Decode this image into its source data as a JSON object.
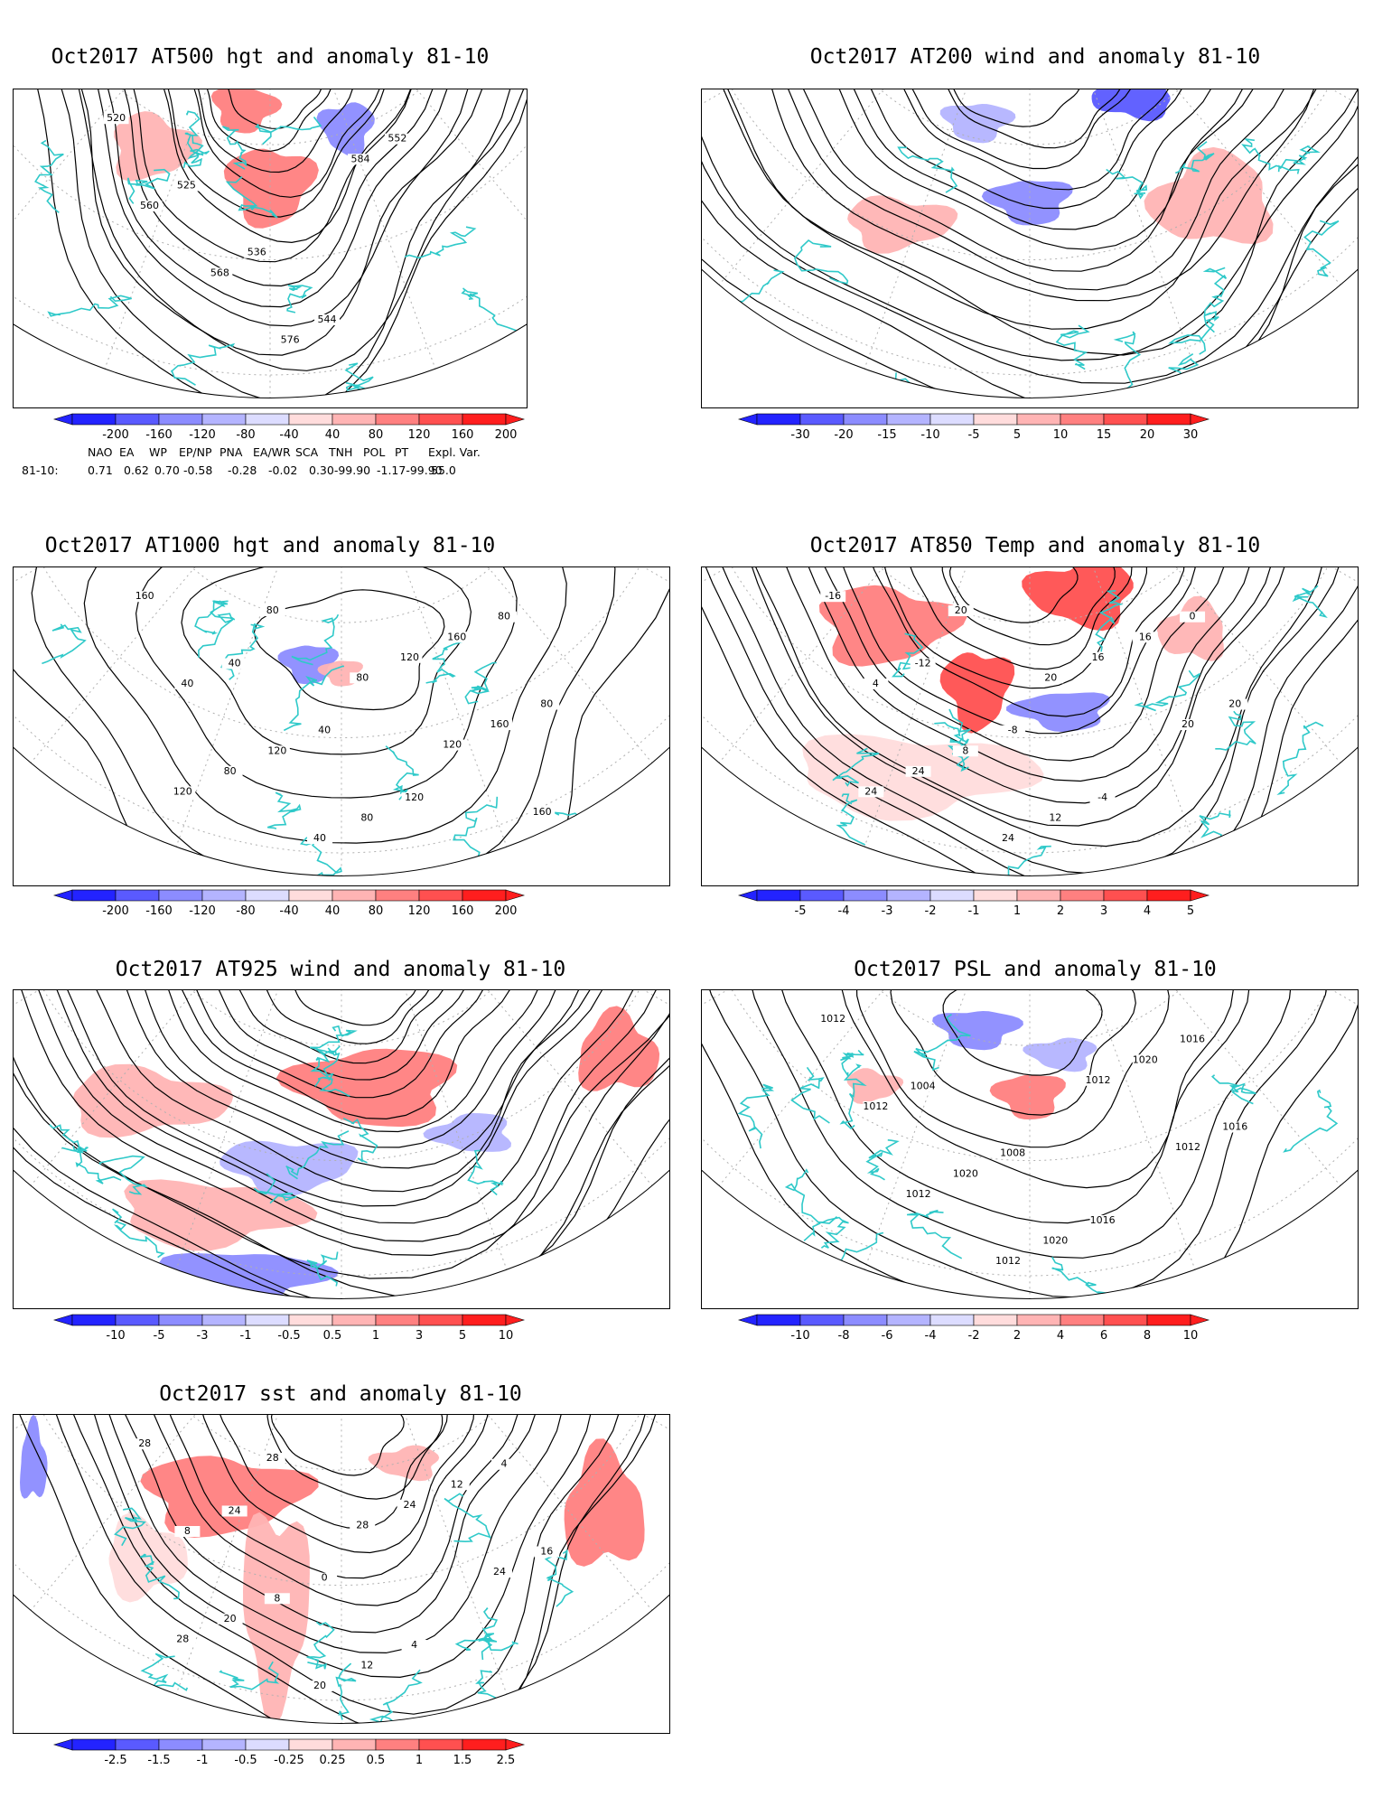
{
  "panels": [
    {
      "id": "p1",
      "title": "Oct2017 AT500 hgt and anomaly 81-10",
      "contour_labels": [
        "520",
        "525",
        "536",
        "544",
        "552",
        "560",
        "568",
        "576",
        "584"
      ],
      "colorbar": {
        "ticks": [
          "-200",
          "-160",
          "-120",
          "-80",
          "-40",
          "40",
          "80",
          "120",
          "160",
          "200"
        ]
      },
      "index_table": {
        "headers": [
          "NAO",
          "EA",
          "WP",
          "EP/NP",
          "PNA",
          "EA/WR",
          "SCA",
          "TNH",
          "POL",
          "PT",
          "Expl. Var."
        ],
        "row_label": "81-10:",
        "values": [
          "0.71",
          "0.62",
          "0.70",
          "-0.58",
          "-0.28",
          "-0.02",
          "0.30-99.90",
          "-1.17-99.90",
          "55.0"
        ]
      }
    },
    {
      "id": "p2",
      "title": "Oct2017 AT200 wind and anomaly 81-10",
      "contour_labels": [],
      "colorbar": {
        "ticks": [
          "-30",
          "-20",
          "-15",
          "-10",
          "-5",
          "5",
          "10",
          "15",
          "20",
          "30"
        ]
      }
    },
    {
      "id": "p3",
      "title": "Oct2017 AT1000 hgt and anomaly 81-10",
      "contour_labels": [
        "160",
        "40",
        "40",
        "120",
        "80",
        "40",
        "120",
        "80",
        "160",
        "80",
        "80",
        "40",
        "120",
        "160",
        "120",
        "80",
        "80",
        "120",
        "160"
      ],
      "colorbar": {
        "ticks": [
          "-200",
          "-160",
          "-120",
          "-80",
          "-40",
          "40",
          "80",
          "120",
          "160",
          "200"
        ]
      }
    },
    {
      "id": "p4",
      "title": "Oct2017 AT850 Temp and anomaly 81-10",
      "contour_labels": [
        "-16",
        "-12",
        "-8",
        "-4",
        "0",
        "4",
        "8",
        "12",
        "16",
        "20",
        "24",
        "24",
        "16",
        "20",
        "24",
        "20",
        "20"
      ],
      "colorbar": {
        "ticks": [
          "-5",
          "-4",
          "-3",
          "-2",
          "-1",
          "1",
          "2",
          "3",
          "4",
          "5"
        ]
      }
    },
    {
      "id": "p5",
      "title": "Oct2017 AT925 wind and anomaly 81-10",
      "contour_labels": [],
      "colorbar": {
        "ticks": [
          "-10",
          "-5",
          "-3",
          "-1",
          "-0.5",
          "0.5",
          "1",
          "3",
          "5",
          "10"
        ]
      }
    },
    {
      "id": "p6",
      "title": "Oct2017 PSL and anomaly 81-10",
      "contour_labels": [
        "1012",
        "1004",
        "1008",
        "1016",
        "1016",
        "1012",
        "1020",
        "1020",
        "1020",
        "1016",
        "1012",
        "1012",
        "1012",
        "1012"
      ],
      "colorbar": {
        "ticks": [
          "-10",
          "-8",
          "-6",
          "-4",
          "-2",
          "2",
          "4",
          "6",
          "8",
          "10"
        ]
      }
    },
    {
      "id": "p7",
      "title": "Oct2017 sst and anomaly 81-10",
      "contour_labels": [
        "28",
        "24",
        "0",
        "4",
        "4",
        "8",
        "8",
        "12",
        "12",
        "16",
        "20",
        "20",
        "24",
        "24",
        "28",
        "28",
        "28"
      ],
      "colorbar": {
        "ticks": [
          "-2.5",
          "-1.5",
          "-1",
          "-0.5",
          "-0.25",
          "0.25",
          "0.5",
          "1",
          "1.5",
          "2.5"
        ]
      }
    }
  ],
  "colors": {
    "coast": "#2fc9c9",
    "contour": "#000000",
    "grid": "#b0b0b0",
    "scale": [
      "#2323ff",
      "#5a5aff",
      "#8c8cff",
      "#b4b4ff",
      "#dcdcff",
      "#ffffff",
      "#ffdcdc",
      "#ffb4b4",
      "#ff8080",
      "#ff5050",
      "#ff1e1e"
    ]
  }
}
